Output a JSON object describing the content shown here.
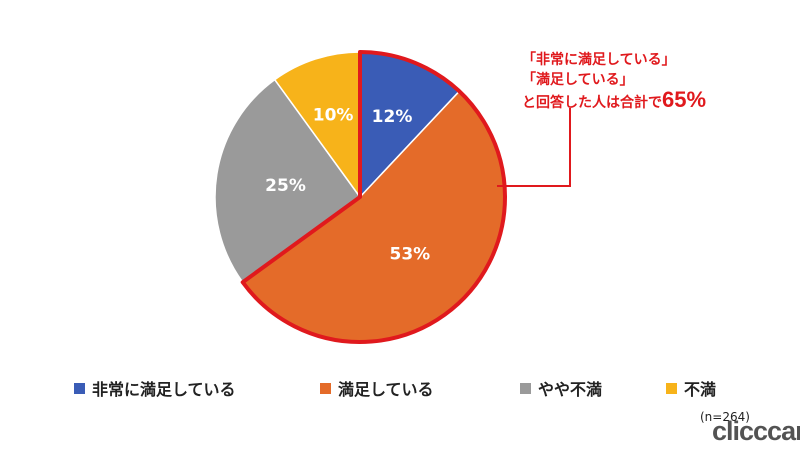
{
  "chart_data": {
    "type": "pie",
    "categories": [
      "非常に満足している",
      "満足している",
      "やや不満",
      "不満"
    ],
    "values": [
      12,
      53,
      25,
      10
    ],
    "value_labels": [
      "12%",
      "53%",
      "25%",
      "10%"
    ],
    "colors": [
      "#3a5cb6",
      "#e46b29",
      "#9a9a9a",
      "#f7b31a"
    ],
    "highlight_color": "#e0191d",
    "highlighted_slices": [
      "非常に満足している",
      "満足している"
    ],
    "legend_position": "bottom"
  },
  "callout": {
    "line1": "「非常に満足している」",
    "line2": "「満足している」",
    "line3": "と回答した人は合計で",
    "total": "65%"
  },
  "note": "(n=264)",
  "logo_text": "clicccar"
}
